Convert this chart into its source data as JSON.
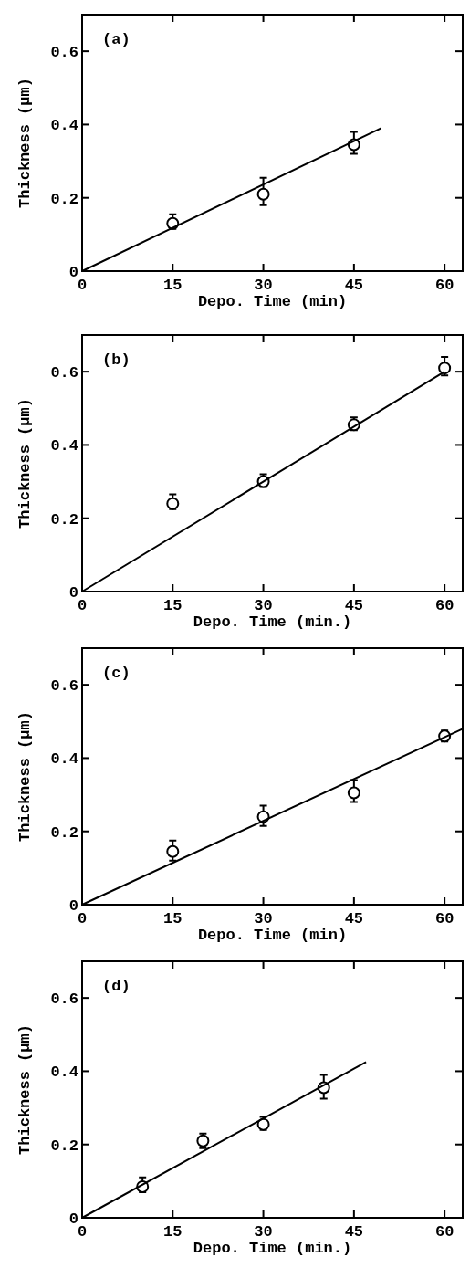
{
  "chart_data": [
    {
      "type": "scatter",
      "xlabel": "Depo. Time (min)",
      "ylabel": "Thickness (μm)",
      "xlim": [
        0,
        63
      ],
      "ylim": [
        0,
        0.7
      ],
      "xticks": [
        0,
        15,
        30,
        45,
        60
      ],
      "yticks": [
        0,
        0.2,
        0.4,
        0.6
      ],
      "annotations": [
        "(a)"
      ],
      "series": [
        {
          "color": "#000000",
          "marker": "circle",
          "x": [
            15,
            30,
            45
          ],
          "values": [
            0.13,
            0.21,
            0.345
          ],
          "errors": [
            [
              0.115,
              0.155
            ],
            [
              0.18,
              0.255
            ],
            [
              0.32,
              0.38
            ]
          ]
        },
        {
          "type": "line",
          "color": "#000000",
          "x": [
            0,
            49.5
          ],
          "values": [
            0,
            0.39
          ]
        }
      ]
    },
    {
      "type": "scatter",
      "xlabel": "Depo. Time (min.)",
      "ylabel": "Thickness (μm)",
      "xlim": [
        0,
        63
      ],
      "ylim": [
        0,
        0.7
      ],
      "xticks": [
        0,
        15,
        30,
        45,
        60
      ],
      "yticks": [
        0,
        0.2,
        0.4,
        0.6
      ],
      "annotations": [
        "(b)"
      ],
      "series": [
        {
          "color": "#000000",
          "marker": "circle",
          "x": [
            15,
            30,
            45,
            60
          ],
          "values": [
            0.24,
            0.3,
            0.455,
            0.61
          ],
          "errors": [
            [
              0.225,
              0.265
            ],
            [
              0.285,
              0.32
            ],
            [
              0.44,
              0.475
            ],
            [
              0.59,
              0.64
            ]
          ]
        },
        {
          "type": "line",
          "color": "#000000",
          "x": [
            0,
            60
          ],
          "values": [
            0,
            0.6
          ]
        }
      ]
    },
    {
      "type": "scatter",
      "xlabel": "Depo. Time (min)",
      "ylabel": "Thickness (μm)",
      "xlim": [
        0,
        63
      ],
      "ylim": [
        0,
        0.7
      ],
      "xticks": [
        0,
        15,
        30,
        45,
        60
      ],
      "yticks": [
        0,
        0.2,
        0.4,
        0.6
      ],
      "annotations": [
        "(c)"
      ],
      "series": [
        {
          "color": "#000000",
          "marker": "circle",
          "x": [
            15,
            30,
            45,
            60
          ],
          "values": [
            0.145,
            0.24,
            0.305,
            0.46
          ],
          "errors": [
            [
              0.12,
              0.175
            ],
            [
              0.215,
              0.27
            ],
            [
              0.28,
              0.34
            ],
            [
              0.445,
              0.475
            ]
          ]
        },
        {
          "type": "line",
          "color": "#000000",
          "x": [
            0,
            63
          ],
          "values": [
            0,
            0.48
          ]
        }
      ]
    },
    {
      "type": "scatter",
      "xlabel": "Depo. Time (min.)",
      "ylabel": "Thickness (μm)",
      "xlim": [
        0,
        63
      ],
      "ylim": [
        0,
        0.7
      ],
      "xticks": [
        0,
        15,
        30,
        45,
        60
      ],
      "yticks": [
        0,
        0.2,
        0.4,
        0.6
      ],
      "annotations": [
        "(d)"
      ],
      "series": [
        {
          "color": "#000000",
          "marker": "circle",
          "x": [
            10,
            20,
            30,
            40
          ],
          "values": [
            0.085,
            0.21,
            0.255,
            0.355
          ],
          "errors": [
            [
              0.07,
              0.11
            ],
            [
              0.19,
              0.23
            ],
            [
              0.24,
              0.275
            ],
            [
              0.325,
              0.39
            ]
          ]
        },
        {
          "type": "line",
          "color": "#000000",
          "x": [
            0,
            47
          ],
          "values": [
            0,
            0.425
          ]
        }
      ]
    }
  ]
}
